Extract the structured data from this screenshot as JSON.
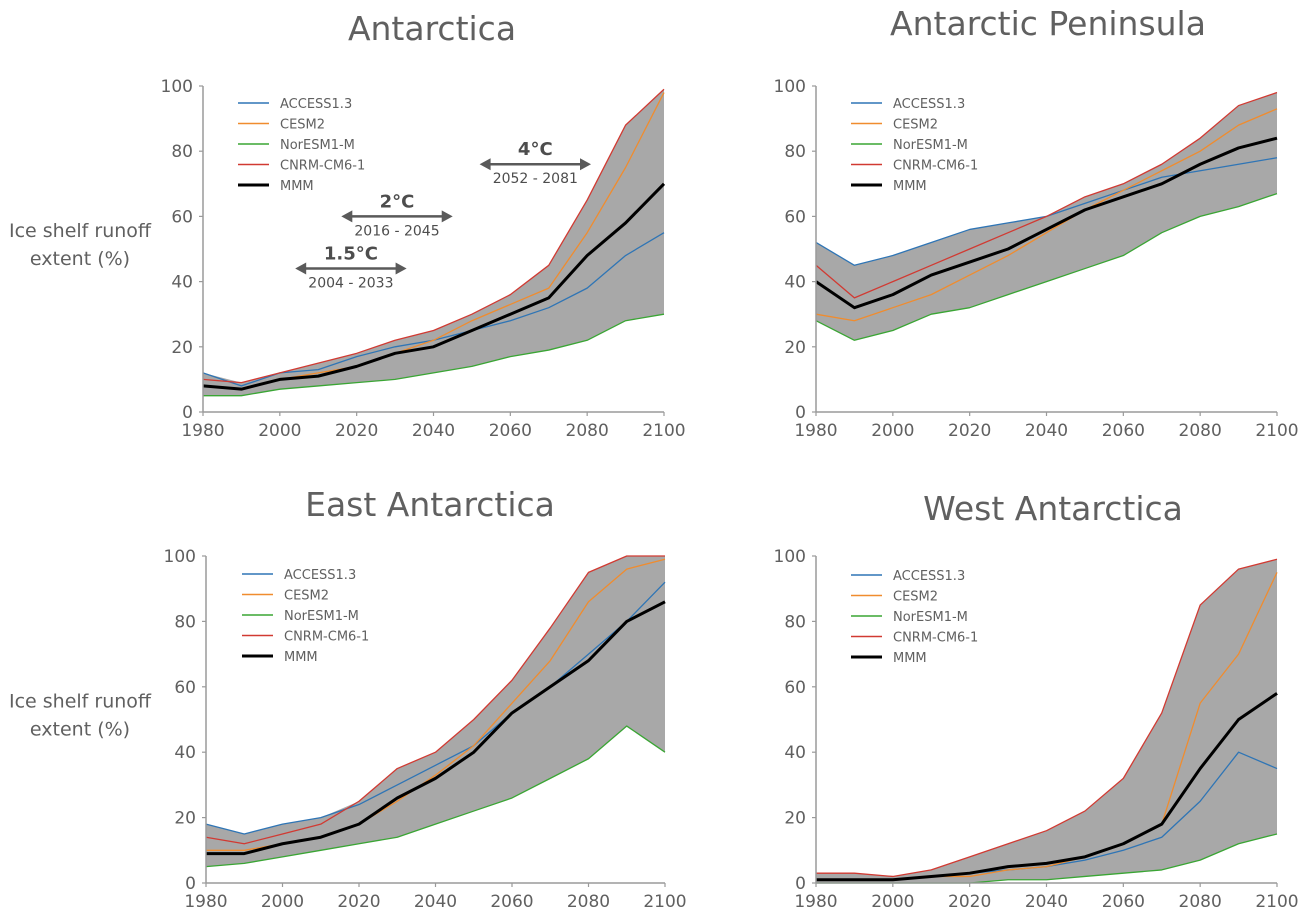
{
  "chart_data": [
    {
      "type": "line",
      "title": "Antarctica",
      "ylabel": "Ice shelf runoff extent (%)",
      "ylabel_lines": [
        "Ice shelf runoff",
        "extent (%)"
      ],
      "xlim": [
        1980,
        2100
      ],
      "ylim": [
        0,
        100
      ],
      "xticks": [
        1980,
        2000,
        2020,
        2040,
        2060,
        2080,
        2100
      ],
      "yticks": [
        0,
        20,
        40,
        60,
        80,
        100
      ],
      "grid": false,
      "legend_position": "top-left",
      "shading": "grey envelope between model minimum and maximum",
      "series": [
        {
          "name": "ACCESS1.3",
          "color": "#2f75b5",
          "x": [
            1980,
            1990,
            2000,
            2010,
            2020,
            2030,
            2040,
            2050,
            2060,
            2070,
            2080,
            2090,
            2100
          ],
          "values": [
            12,
            8,
            12,
            13,
            17,
            20,
            22,
            25,
            28,
            32,
            38,
            48,
            55
          ]
        },
        {
          "name": "CESM2",
          "color": "#f08c2e",
          "x": [
            1980,
            1990,
            2000,
            2010,
            2020,
            2030,
            2040,
            2050,
            2060,
            2070,
            2080,
            2090,
            2100
          ],
          "values": [
            8,
            7,
            10,
            12,
            14,
            18,
            22,
            28,
            33,
            38,
            55,
            75,
            98
          ]
        },
        {
          "name": "NorESM1-M",
          "color": "#3aa534",
          "x": [
            1980,
            1990,
            2000,
            2010,
            2020,
            2030,
            2040,
            2050,
            2060,
            2070,
            2080,
            2090,
            2100
          ],
          "values": [
            5,
            5,
            7,
            8,
            9,
            10,
            12,
            14,
            17,
            19,
            22,
            28,
            30
          ]
        },
        {
          "name": "CNRM-CM6-1",
          "color": "#d13a32",
          "x": [
            1980,
            1990,
            2000,
            2010,
            2020,
            2030,
            2040,
            2050,
            2060,
            2070,
            2080,
            2090,
            2100
          ],
          "values": [
            10,
            9,
            12,
            15,
            18,
            22,
            25,
            30,
            36,
            45,
            65,
            88,
            99
          ]
        },
        {
          "name": "MMM",
          "color": "#000000",
          "x": [
            1980,
            1990,
            2000,
            2010,
            2020,
            2030,
            2040,
            2050,
            2060,
            2070,
            2080,
            2090,
            2100
          ],
          "values": [
            8,
            7,
            10,
            11,
            14,
            18,
            20,
            25,
            30,
            35,
            48,
            58,
            70
          ]
        }
      ],
      "annotations": [
        {
          "label": "1.5°C",
          "period": "2004 - 2033",
          "range": [
            2004,
            2033
          ],
          "y": 44
        },
        {
          "label": "2°C",
          "period": "2016 - 2045",
          "range": [
            2016,
            2045
          ],
          "y": 60
        },
        {
          "label": "4°C",
          "period": "2052 - 2081",
          "range": [
            2052,
            2081
          ],
          "y": 76
        }
      ]
    },
    {
      "type": "line",
      "title": "Antarctic Peninsula",
      "xlim": [
        1980,
        2100
      ],
      "ylim": [
        0,
        100
      ],
      "xticks": [
        1980,
        2000,
        2020,
        2040,
        2060,
        2080,
        2100
      ],
      "yticks": [
        0,
        20,
        40,
        60,
        80,
        100
      ],
      "grid": false,
      "legend_position": "top-left",
      "shading": "grey envelope between model minimum and maximum",
      "series": [
        {
          "name": "ACCESS1.3",
          "color": "#2f75b5",
          "x": [
            1980,
            1990,
            2000,
            2010,
            2020,
            2030,
            2040,
            2050,
            2060,
            2070,
            2080,
            2090,
            2100
          ],
          "values": [
            52,
            45,
            48,
            52,
            56,
            58,
            60,
            64,
            68,
            72,
            74,
            76,
            78
          ]
        },
        {
          "name": "CESM2",
          "color": "#f08c2e",
          "x": [
            1980,
            1990,
            2000,
            2010,
            2020,
            2030,
            2040,
            2050,
            2060,
            2070,
            2080,
            2090,
            2100
          ],
          "values": [
            30,
            28,
            32,
            36,
            42,
            48,
            55,
            62,
            68,
            74,
            80,
            88,
            93
          ]
        },
        {
          "name": "NorESM1-M",
          "color": "#3aa534",
          "x": [
            1980,
            1990,
            2000,
            2010,
            2020,
            2030,
            2040,
            2050,
            2060,
            2070,
            2080,
            2090,
            2100
          ],
          "values": [
            28,
            22,
            25,
            30,
            32,
            36,
            40,
            44,
            48,
            55,
            60,
            63,
            67
          ]
        },
        {
          "name": "CNRM-CM6-1",
          "color": "#d13a32",
          "x": [
            1980,
            1990,
            2000,
            2010,
            2020,
            2030,
            2040,
            2050,
            2060,
            2070,
            2080,
            2090,
            2100
          ],
          "values": [
            45,
            35,
            40,
            45,
            50,
            55,
            60,
            66,
            70,
            76,
            84,
            94,
            98
          ]
        },
        {
          "name": "MMM",
          "color": "#000000",
          "x": [
            1980,
            1990,
            2000,
            2010,
            2020,
            2030,
            2040,
            2050,
            2060,
            2070,
            2080,
            2090,
            2100
          ],
          "values": [
            40,
            32,
            36,
            42,
            46,
            50,
            56,
            62,
            66,
            70,
            76,
            81,
            84
          ]
        }
      ]
    },
    {
      "type": "line",
      "title": "East Antarctica",
      "ylabel": "Ice shelf runoff extent (%)",
      "ylabel_lines": [
        "Ice shelf runoff",
        "extent (%)"
      ],
      "xlim": [
        1980,
        2100
      ],
      "ylim": [
        0,
        100
      ],
      "xticks": [
        1980,
        2000,
        2020,
        2040,
        2060,
        2080,
        2100
      ],
      "yticks": [
        0,
        20,
        40,
        60,
        80,
        100
      ],
      "grid": false,
      "legend_position": "top-left",
      "shading": "grey envelope between model minimum and maximum",
      "series": [
        {
          "name": "ACCESS1.3",
          "color": "#2f75b5",
          "x": [
            1980,
            1990,
            2000,
            2010,
            2020,
            2030,
            2040,
            2050,
            2060,
            2070,
            2080,
            2090,
            2100
          ],
          "values": [
            18,
            15,
            18,
            20,
            24,
            30,
            36,
            42,
            52,
            60,
            70,
            80,
            92
          ]
        },
        {
          "name": "CESM2",
          "color": "#f08c2e",
          "x": [
            1980,
            1990,
            2000,
            2010,
            2020,
            2030,
            2040,
            2050,
            2060,
            2070,
            2080,
            2090,
            2100
          ],
          "values": [
            10,
            10,
            12,
            14,
            18,
            25,
            33,
            42,
            55,
            68,
            86,
            96,
            99
          ]
        },
        {
          "name": "NorESM1-M",
          "color": "#3aa534",
          "x": [
            1980,
            1990,
            2000,
            2010,
            2020,
            2030,
            2040,
            2050,
            2060,
            2070,
            2080,
            2090,
            2100
          ],
          "values": [
            5,
            6,
            8,
            10,
            12,
            14,
            18,
            22,
            26,
            32,
            38,
            48,
            40
          ]
        },
        {
          "name": "CNRM-CM6-1",
          "color": "#d13a32",
          "x": [
            1980,
            1990,
            2000,
            2010,
            2020,
            2030,
            2040,
            2050,
            2060,
            2070,
            2080,
            2090,
            2100
          ],
          "values": [
            14,
            12,
            15,
            18,
            25,
            35,
            40,
            50,
            62,
            78,
            95,
            100,
            100
          ]
        },
        {
          "name": "MMM",
          "color": "#000000",
          "x": [
            1980,
            1990,
            2000,
            2010,
            2020,
            2030,
            2040,
            2050,
            2060,
            2070,
            2080,
            2090,
            2100
          ],
          "values": [
            9,
            9,
            12,
            14,
            18,
            26,
            32,
            40,
            52,
            60,
            68,
            80,
            86
          ]
        }
      ]
    },
    {
      "type": "line",
      "title": "West Antarctica",
      "xlim": [
        1980,
        2100
      ],
      "ylim": [
        0,
        100
      ],
      "xticks": [
        1980,
        2000,
        2020,
        2040,
        2060,
        2080,
        2100
      ],
      "yticks": [
        0,
        20,
        40,
        60,
        80,
        100
      ],
      "grid": false,
      "legend_position": "top-left",
      "shading": "grey envelope between model minimum and maximum",
      "series": [
        {
          "name": "ACCESS1.3",
          "color": "#2f75b5",
          "x": [
            1980,
            1990,
            2000,
            2010,
            2020,
            2030,
            2040,
            2050,
            2060,
            2070,
            2080,
            2090,
            2100
          ],
          "values": [
            1,
            1,
            1,
            2,
            3,
            4,
            5,
            7,
            10,
            14,
            25,
            40,
            35
          ]
        },
        {
          "name": "CESM2",
          "color": "#f08c2e",
          "x": [
            1980,
            1990,
            2000,
            2010,
            2020,
            2030,
            2040,
            2050,
            2060,
            2070,
            2080,
            2090,
            2100
          ],
          "values": [
            1,
            1,
            1,
            2,
            2,
            4,
            5,
            8,
            12,
            18,
            55,
            70,
            95
          ]
        },
        {
          "name": "NorESM1-M",
          "color": "#3aa534",
          "x": [
            1980,
            1990,
            2000,
            2010,
            2020,
            2030,
            2040,
            2050,
            2060,
            2070,
            2080,
            2090,
            2100
          ],
          "values": [
            0,
            0,
            0,
            0,
            0,
            1,
            1,
            2,
            3,
            4,
            7,
            12,
            15
          ]
        },
        {
          "name": "CNRM-CM6-1",
          "color": "#d13a32",
          "x": [
            1980,
            1990,
            2000,
            2010,
            2020,
            2030,
            2040,
            2050,
            2060,
            2070,
            2080,
            2090,
            2100
          ],
          "values": [
            3,
            3,
            2,
            4,
            8,
            12,
            16,
            22,
            32,
            52,
            85,
            96,
            99
          ]
        },
        {
          "name": "MMM",
          "color": "#000000",
          "x": [
            1980,
            1990,
            2000,
            2010,
            2020,
            2030,
            2040,
            2050,
            2060,
            2070,
            2080,
            2090,
            2100
          ],
          "values": [
            1,
            1,
            1,
            2,
            3,
            5,
            6,
            8,
            12,
            18,
            35,
            50,
            58
          ]
        }
      ]
    }
  ]
}
